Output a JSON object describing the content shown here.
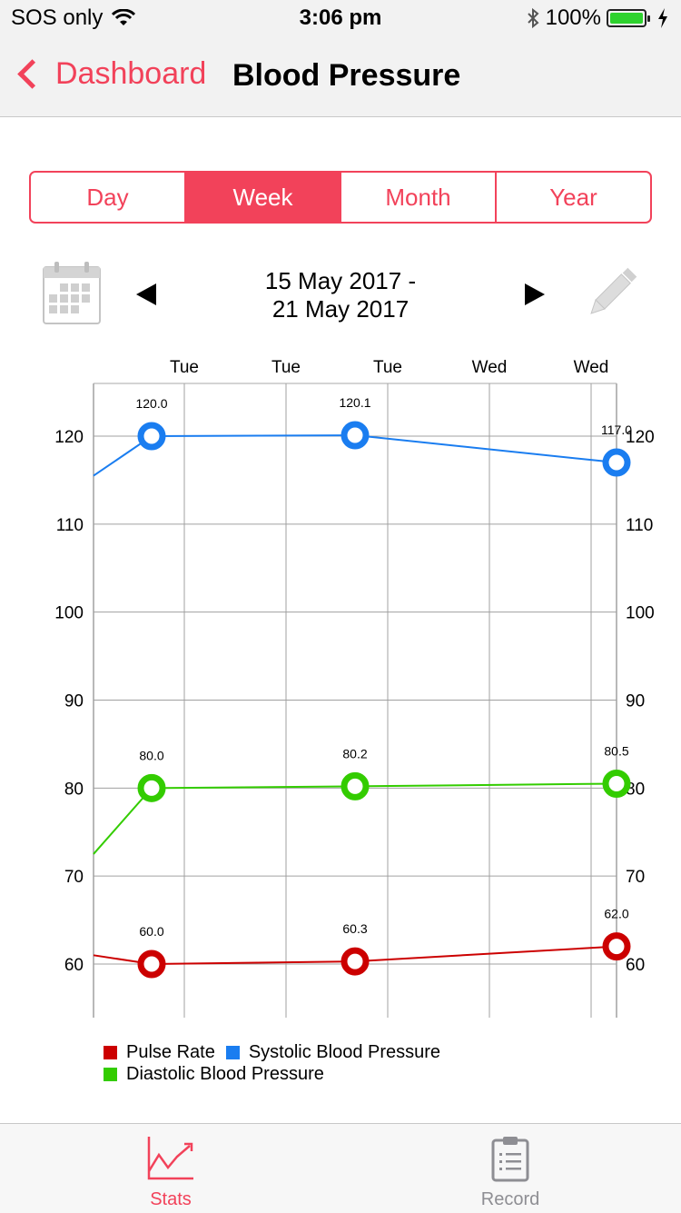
{
  "status_bar": {
    "carrier": "SOS only",
    "time": "3:06 pm",
    "battery_percent": "100%",
    "battery_level": 1.0,
    "battery_color": "#2ed22e",
    "icons": [
      "wifi-icon",
      "bluetooth-icon",
      "battery-icon",
      "charging-bolt-icon"
    ]
  },
  "nav": {
    "back_label": "Dashboard",
    "title": "Blood Pressure",
    "accent_color": "#f2425a"
  },
  "segments": {
    "items": [
      "Day",
      "Week",
      "Month",
      "Year"
    ],
    "selected": "Week"
  },
  "date_nav": {
    "range_line1": "15 May 2017 -",
    "range_line2": "21 May 2017",
    "icons": [
      "calendar-icon",
      "prev-arrow-icon",
      "next-arrow-icon",
      "pencil-icon"
    ]
  },
  "chart_data": {
    "type": "line",
    "x_tick_labels": [
      "Tue",
      "Tue",
      "Tue",
      "Wed",
      "Wed"
    ],
    "y_ticks_left": [
      120,
      110,
      100,
      90,
      80,
      70,
      60
    ],
    "y_ticks_right": [
      120,
      110,
      100,
      90,
      80,
      70,
      60
    ],
    "ylim": [
      55,
      125
    ],
    "grid": true,
    "legend_position": "bottom-left",
    "series": [
      {
        "name": "Systolic Blood Pressure",
        "color": "#1a7df0",
        "lead_in": 115.5,
        "values": [
          120.0,
          120.1,
          117.0
        ],
        "labels": [
          "120.0",
          "120.1",
          "117.0"
        ]
      },
      {
        "name": "Diastolic Blood Pressure",
        "color": "#33cc00",
        "lead_in": 72.5,
        "values": [
          80.0,
          80.2,
          80.5
        ],
        "labels": [
          "80.0",
          "80.2",
          "80.5"
        ]
      },
      {
        "name": "Pulse Rate",
        "color": "#cc0000",
        "lead_in": 61.0,
        "values": [
          60.0,
          60.3,
          62.0
        ],
        "labels": [
          "60.0",
          "60.3",
          "62.0"
        ]
      }
    ]
  },
  "legend": {
    "pulse": "Pulse Rate",
    "systolic": "Systolic Blood Pressure",
    "diastolic": "Diastolic Blood Pressure"
  },
  "tabs": {
    "stats_label": "Stats",
    "record_label": "Record",
    "active": "Stats"
  }
}
